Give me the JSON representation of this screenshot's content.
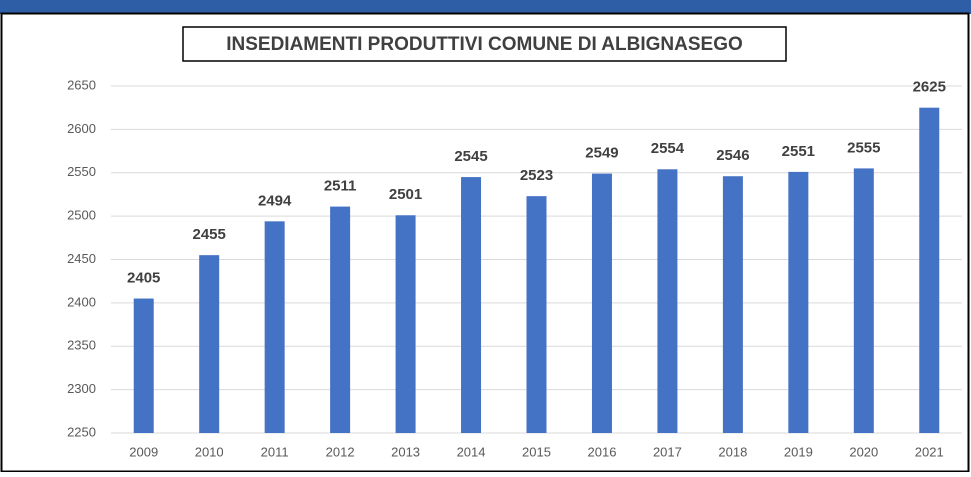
{
  "chart_data": {
    "type": "bar",
    "title": "INSEDIAMENTI PRODUTTIVI COMUNE DI ALBIGNASEGO",
    "categories": [
      "2009",
      "2010",
      "2011",
      "2012",
      "2013",
      "2014",
      "2015",
      "2016",
      "2017",
      "2018",
      "2019",
      "2020",
      "2021"
    ],
    "values": [
      2405,
      2455,
      2494,
      2511,
      2501,
      2545,
      2523,
      2549,
      2554,
      2546,
      2551,
      2555,
      2625
    ],
    "color": "#4472c4",
    "ylim": [
      2250,
      2650
    ],
    "yticks": [
      2250,
      2300,
      2350,
      2400,
      2450,
      2500,
      2550,
      2600,
      2650
    ],
    "grid": true
  }
}
